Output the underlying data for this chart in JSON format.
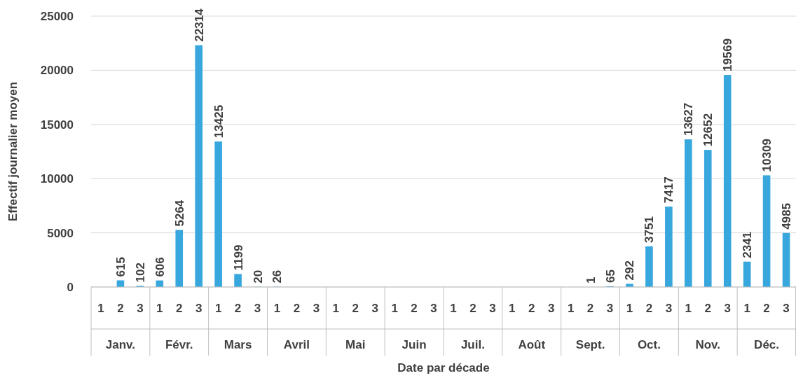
{
  "chart_data": {
    "type": "bar",
    "xlabel": "Date par décade",
    "ylabel": "Effectif journalier moyen",
    "categories": [
      "1",
      "2",
      "3",
      "1",
      "2",
      "3",
      "1",
      "2",
      "3",
      "1",
      "2",
      "3",
      "1",
      "2",
      "3",
      "1",
      "2",
      "3",
      "1",
      "2",
      "3",
      "1",
      "2",
      "3",
      "1",
      "2",
      "3",
      "1",
      "2",
      "3",
      "1",
      "2",
      "3",
      "1",
      "2",
      "3"
    ],
    "annotations": [
      "Janv.",
      "Févr.",
      "Mars",
      "Avril",
      "Mai",
      "Juin",
      "Juil.",
      "Août",
      "Sept.",
      "Oct.",
      "Nov.",
      "Déc."
    ],
    "values": [
      null,
      615,
      102,
      606,
      5264,
      22314,
      13425,
      1199,
      20,
      26,
      null,
      null,
      null,
      null,
      null,
      null,
      null,
      null,
      null,
      null,
      null,
      null,
      null,
      null,
      null,
      1,
      65,
      292,
      3751,
      7417,
      13627,
      12652,
      19569,
      2341,
      10309,
      4985
    ],
    "color": "#38a7de",
    "ylim": [
      0,
      25000
    ],
    "yticks": [
      0,
      5000,
      10000,
      15000,
      20000,
      25000
    ],
    "grid": "y",
    "data_labels": true
  }
}
